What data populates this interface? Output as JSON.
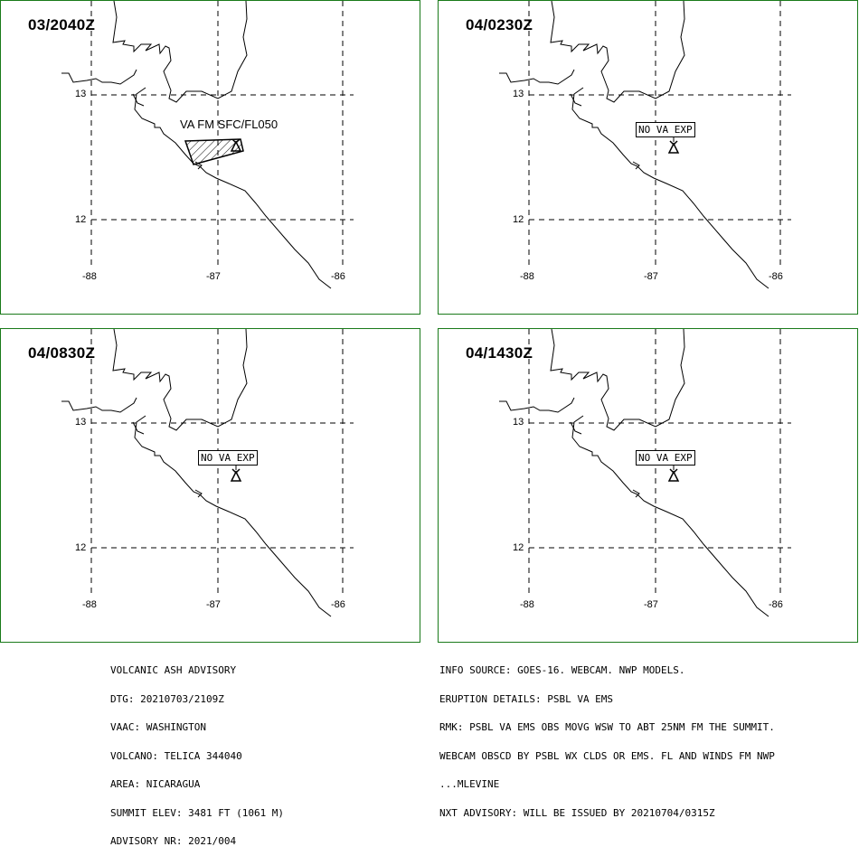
{
  "panels": [
    {
      "time": "03/2040Z",
      "label": "VA FM SFC/FL050",
      "type": "ash"
    },
    {
      "time": "04/0230Z",
      "label": "NO VA EXP",
      "type": "none"
    },
    {
      "time": "04/0830Z",
      "label": "NO VA EXP",
      "type": "none"
    },
    {
      "time": "04/1430Z",
      "label": "NO VA EXP",
      "type": "none"
    }
  ],
  "grid": {
    "lat_labels": [
      "13",
      "12"
    ],
    "lon_labels": [
      "-88",
      "-87",
      "-86"
    ]
  },
  "advisory_left": [
    "VOLCANIC ASH ADVISORY",
    "DTG: 20210703/2109Z",
    "VAAC: WASHINGTON",
    "VOLCANO: TELICA 344040",
    "AREA: NICARAGUA",
    "SUMMIT ELEV: 3481 FT (1061 M)",
    "ADVISORY NR: 2021/004"
  ],
  "advisory_right": [
    "INFO SOURCE: GOES-16. WEBCAM. NWP MODELS.",
    "ERUPTION DETAILS: PSBL VA EMS",
    "RMK: PSBL VA EMS OBS MOVG WSW TO ABT 25NM FM THE SUMMIT.",
    "WEBCAM OBSCD BY PSBL WX CLDS OR EMS. FL AND WINDS FM NWP",
    "...MLEVINE",
    "NXT ADVISORY: WILL BE ISSUED BY 20210704/0315Z"
  ],
  "colors": {
    "frame": "#1a7a1a",
    "lines": "#000000"
  }
}
